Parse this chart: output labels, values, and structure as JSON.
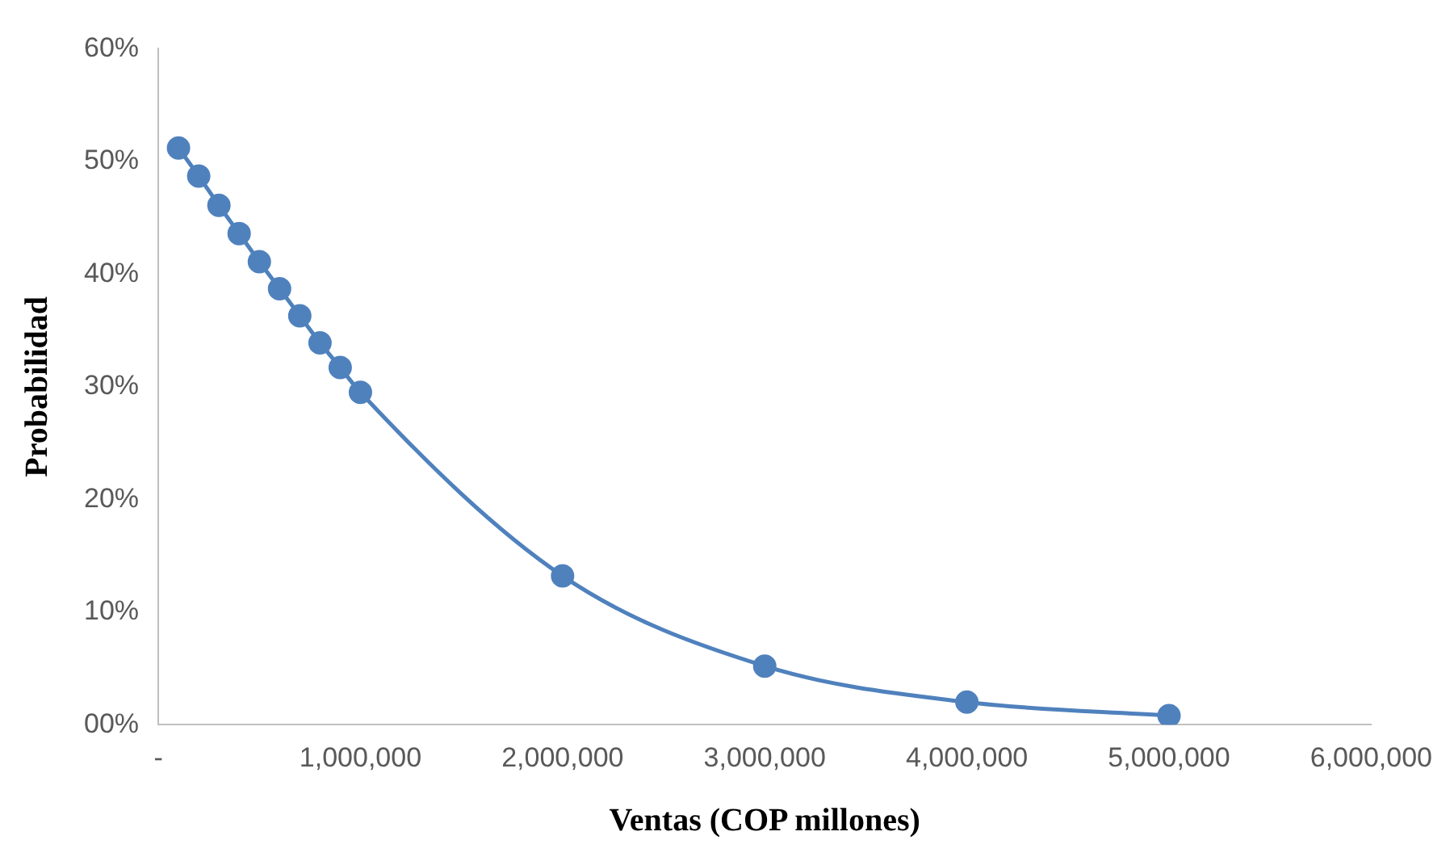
{
  "chart_data": {
    "type": "line",
    "xlabel": "Ventas (COP millones)",
    "ylabel": "Probabilidad",
    "x": [
      100000,
      200000,
      300000,
      400000,
      500000,
      600000,
      700000,
      800000,
      900000,
      1000000,
      2000000,
      3000000,
      4000000,
      5000000
    ],
    "series": [
      {
        "color": "#4f81bd",
        "values": [
          51.2,
          48.7,
          46.1,
          43.6,
          41.1,
          38.7,
          36.3,
          33.9,
          31.7,
          29.5,
          13.2,
          5.2,
          2.0,
          0.8
        ]
      }
    ],
    "xlim": [
      0,
      6000000
    ],
    "xticks": [
      {
        "value": 0,
        "label": "-"
      },
      {
        "value": 1000000,
        "label": "1,000,000"
      },
      {
        "value": 2000000,
        "label": "2,000,000"
      },
      {
        "value": 3000000,
        "label": "3,000,000"
      },
      {
        "value": 4000000,
        "label": "4,000,000"
      },
      {
        "value": 5000000,
        "label": "5,000,000"
      },
      {
        "value": 6000000,
        "label": "6,000,000"
      }
    ],
    "ylim": [
      0,
      60
    ],
    "yticks": [
      {
        "value": 0,
        "label": "00%"
      },
      {
        "value": 10,
        "label": "10%"
      },
      {
        "value": 20,
        "label": "20%"
      },
      {
        "value": 30,
        "label": "30%"
      },
      {
        "value": 40,
        "label": "40%"
      },
      {
        "value": 50,
        "label": "50%"
      },
      {
        "value": 60,
        "label": "60%"
      }
    ],
    "grid": false,
    "legend": false,
    "marker": "circle",
    "line_style": "solid"
  }
}
